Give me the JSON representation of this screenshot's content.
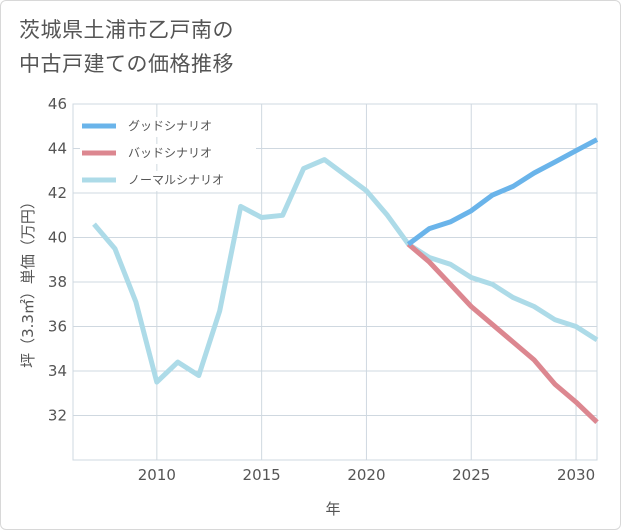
{
  "title_line1": "茨城県土浦市乙戸南の",
  "title_line2": "中古戸建ての価格推移",
  "chart_data": {
    "type": "line",
    "xlabel": "年",
    "ylabel": "坪（3.3㎡）単価（万円）",
    "xlim": [
      2006,
      2031
    ],
    "ylim": [
      30,
      46
    ],
    "xticks": [
      2010,
      2015,
      2020,
      2025,
      2030
    ],
    "yticks": [
      32,
      34,
      36,
      38,
      40,
      42,
      44,
      46
    ],
    "grid": true,
    "legend_position": "top-left",
    "series": [
      {
        "name": "グッドシナリオ",
        "color": "#6ab4ea",
        "x": [
          2022,
          2023,
          2024,
          2025,
          2026,
          2027,
          2028,
          2029,
          2030,
          2031
        ],
        "y": [
          39.7,
          40.4,
          40.7,
          41.2,
          41.9,
          42.3,
          42.9,
          43.4,
          43.9,
          44.4
        ]
      },
      {
        "name": "バッドシナリオ",
        "color": "#dc8790",
        "x": [
          2022,
          2023,
          2024,
          2025,
          2026,
          2027,
          2028,
          2029,
          2030,
          2031
        ],
        "y": [
          39.7,
          38.9,
          37.9,
          36.9,
          36.1,
          35.3,
          34.5,
          33.4,
          32.6,
          31.7
        ]
      },
      {
        "name": "ノーマルシナリオ",
        "color": "#addbe8",
        "x": [
          2007,
          2008,
          2009,
          2010,
          2011,
          2012,
          2013,
          2014,
          2015,
          2016,
          2017,
          2018,
          2019,
          2020,
          2021,
          2022,
          2023,
          2024,
          2025,
          2026,
          2027,
          2028,
          2029,
          2030,
          2031
        ],
        "y": [
          40.6,
          39.5,
          37.1,
          33.5,
          34.4,
          33.8,
          36.7,
          41.4,
          40.9,
          41.0,
          43.1,
          43.5,
          42.8,
          42.1,
          41.0,
          39.7,
          39.1,
          38.8,
          38.2,
          37.9,
          37.3,
          36.9,
          36.3,
          36.0,
          35.4
        ]
      }
    ]
  }
}
